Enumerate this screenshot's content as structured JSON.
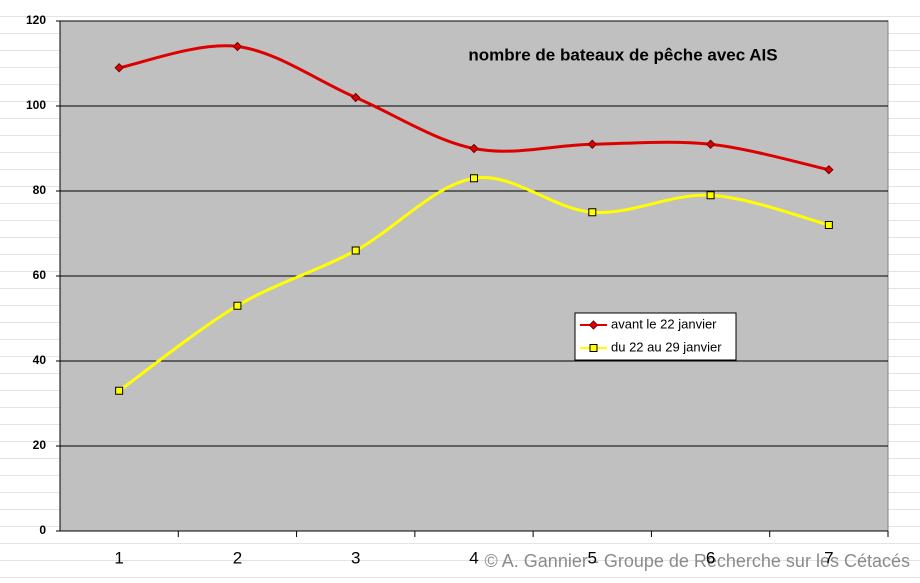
{
  "chart_data": {
    "type": "line",
    "title": "nombre de bateaux de pêche avec AIS",
    "categories": [
      "1",
      "2",
      "3",
      "4",
      "5",
      "6",
      "7"
    ],
    "series": [
      {
        "name": "avant le 22 janvier",
        "color": "#dd0000",
        "values": [
          109,
          114,
          102,
          90,
          91,
          91,
          85
        ]
      },
      {
        "name": "du 22 au 29 janvier",
        "color": "#ffff00",
        "values": [
          33,
          53,
          66,
          83,
          75,
          79,
          72
        ]
      }
    ],
    "ylim": [
      0,
      120
    ],
    "yticks": [
      0,
      20,
      40,
      60,
      80,
      100,
      120
    ],
    "grid": true,
    "smooth": true,
    "watermark": "© A. Gannier - Groupe de Recherche sur les Cétacés"
  }
}
